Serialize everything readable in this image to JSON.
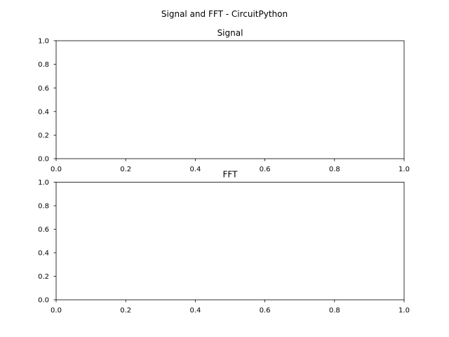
{
  "figure": {
    "suptitle": "Signal and FFT - CircuitPython"
  },
  "chart_data": [
    {
      "type": "line",
      "title": "Signal",
      "xlabel": "",
      "ylabel": "",
      "xlim": [
        0.0,
        1.0
      ],
      "ylim": [
        0.0,
        1.0
      ],
      "xticks": [
        0.0,
        0.2,
        0.4,
        0.6,
        0.8,
        1.0
      ],
      "yticks": [
        0.0,
        0.2,
        0.4,
        0.6,
        0.8,
        1.0
      ],
      "xtick_labels": [
        "0.0",
        "0.2",
        "0.4",
        "0.6",
        "0.8",
        "1.0"
      ],
      "ytick_labels": [
        "0.0",
        "0.2",
        "0.4",
        "0.6",
        "0.8",
        "1.0"
      ],
      "series": [],
      "grid": false,
      "legend": "none"
    },
    {
      "type": "line",
      "title": "FFT",
      "xlabel": "",
      "ylabel": "",
      "xlim": [
        0.0,
        1.0
      ],
      "ylim": [
        0.0,
        1.0
      ],
      "xticks": [
        0.0,
        0.2,
        0.4,
        0.6,
        0.8,
        1.0
      ],
      "yticks": [
        0.0,
        0.2,
        0.4,
        0.6,
        0.8,
        1.0
      ],
      "xtick_labels": [
        "0.0",
        "0.2",
        "0.4",
        "0.6",
        "0.8",
        "1.0"
      ],
      "ytick_labels": [
        "0.0",
        "0.2",
        "0.4",
        "0.6",
        "0.8",
        "1.0"
      ],
      "series": [],
      "grid": false,
      "legend": "none"
    }
  ]
}
